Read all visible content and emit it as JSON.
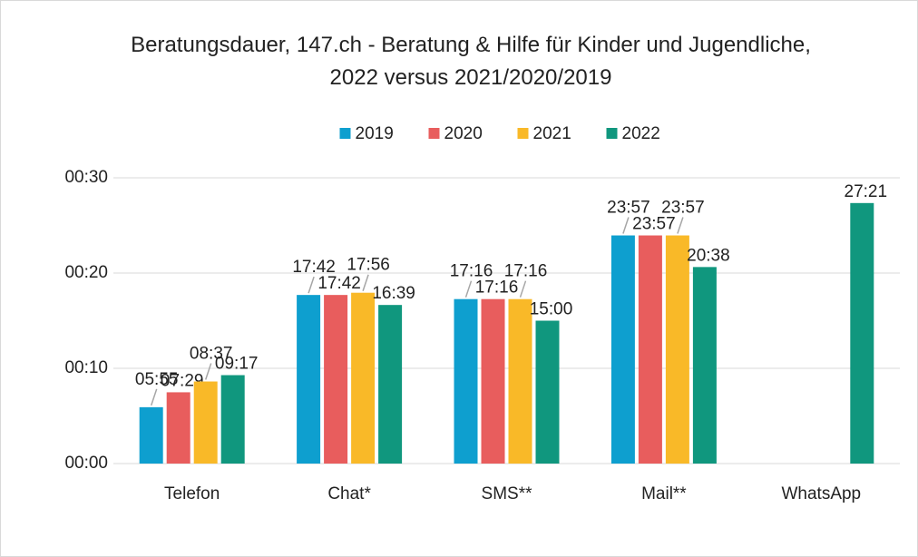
{
  "chart_data": {
    "type": "bar",
    "title": "Beratungsdauer, 147.ch - Beratung & Hilfe für Kinder und Jugendliche, 2022 versus 2021/2020/2019",
    "categories": [
      "Telefon",
      "Chat*",
      "SMS**",
      "Mail**",
      "WhatsApp"
    ],
    "series": [
      {
        "name": "2019",
        "color": "#0e9fcf",
        "values": [
          5.917,
          17.7,
          17.267,
          23.95,
          null
        ],
        "value_labels": [
          "05:55",
          "17:42",
          "17:16",
          "23:57",
          null
        ]
      },
      {
        "name": "2020",
        "color": "#e85d5d",
        "values": [
          7.483,
          17.7,
          17.267,
          23.95,
          null
        ],
        "value_labels": [
          "07:29",
          "17:42",
          "17:16",
          "23:57",
          null
        ]
      },
      {
        "name": "2021",
        "color": "#f9b928",
        "values": [
          8.617,
          17.933,
          17.267,
          23.95,
          null
        ],
        "value_labels": [
          "08:37",
          "17:56",
          "17:16",
          "23:57",
          null
        ]
      },
      {
        "name": "2022",
        "color": "#10977e",
        "values": [
          9.283,
          16.65,
          15,
          20.633,
          27.35
        ],
        "value_labels": [
          "09:17",
          "16:39",
          "15:00",
          "20:38",
          "27:21"
        ]
      }
    ],
    "ylim": [
      0,
      30
    ],
    "yticks": [
      {
        "value": 0,
        "label": "00:00"
      },
      {
        "value": 10,
        "label": "00:10"
      },
      {
        "value": 20,
        "label": "00:20"
      },
      {
        "value": 30,
        "label": "00:30"
      }
    ],
    "grid": true,
    "legend": "top"
  }
}
